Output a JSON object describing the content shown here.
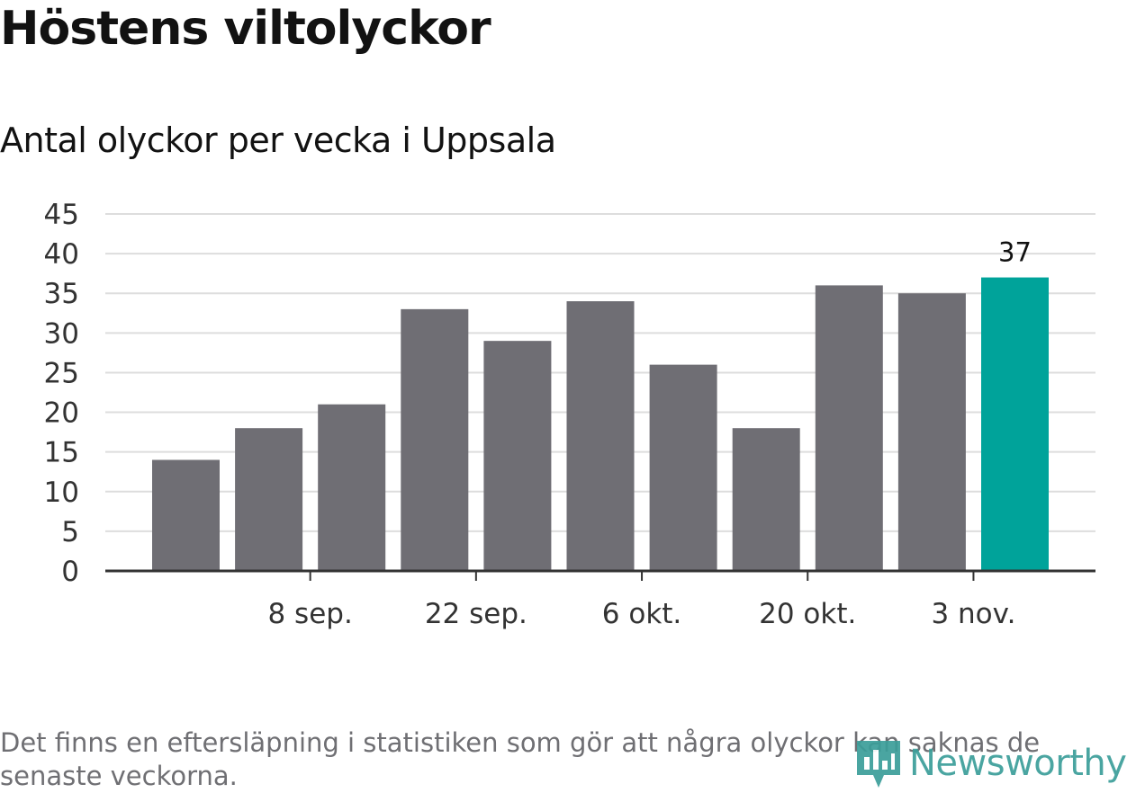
{
  "title": "Höstens viltolyckor",
  "subtitle": "Antal olyckor per vecka i Uppsala",
  "footnote": "Det finns en eftersläpning i statistiken som gör att några olyckor kan saknas de senaste veckorna.",
  "logo": {
    "text": "Newsworthy",
    "icon": "newsworthy-logo-icon",
    "color": "#3b9e9a"
  },
  "colors": {
    "bar": "#6f6e74",
    "highlight": "#00a39a",
    "grid": "#dddddd",
    "axis": "#333333",
    "text": "#333333"
  },
  "chart_data": {
    "type": "bar",
    "y_ticks": [
      "0",
      "5",
      "10",
      "15",
      "20",
      "25",
      "30",
      "35",
      "40",
      "45"
    ],
    "ylim": [
      0,
      45
    ],
    "x_tick_labels": [
      {
        "label": "8 sep.",
        "between_bars": [
          1,
          2
        ]
      },
      {
        "label": "22 sep.",
        "between_bars": [
          3,
          4
        ]
      },
      {
        "label": "6 okt.",
        "between_bars": [
          5,
          6
        ]
      },
      {
        "label": "20 okt.",
        "between_bars": [
          7,
          8
        ]
      },
      {
        "label": "3 nov.",
        "between_bars": [
          9,
          10
        ]
      }
    ],
    "values": [
      14,
      18,
      21,
      33,
      29,
      34,
      26,
      18,
      36,
      35,
      37
    ],
    "highlight_index": 10,
    "highlight_label": "37",
    "grid": true,
    "legend": "none"
  }
}
